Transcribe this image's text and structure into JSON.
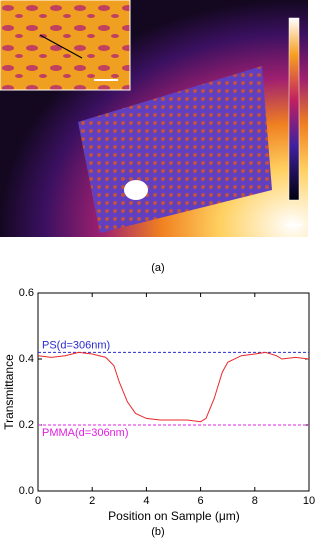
{
  "figure_labels": {
    "a": "(a)",
    "b": "(b)"
  },
  "chart_data": {
    "type": "line",
    "xlabel": "Position on Sample (μm)",
    "ylabel": "Transmittance",
    "xlim": [
      0,
      10
    ],
    "ylim": [
      0,
      0.6
    ],
    "xticks": [
      0,
      2,
      4,
      6,
      8,
      10
    ],
    "yticks": [
      {
        "value": 0,
        "label": "0.0"
      },
      {
        "value": 0.2,
        "label": "0.2"
      },
      {
        "value": 0.4,
        "label": "0.4"
      },
      {
        "value": 0.6,
        "label": "0.6"
      }
    ],
    "series": [
      {
        "color": "#e8282a",
        "x": [
          0,
          0.5,
          1,
          1.5,
          2,
          2.5,
          2.8,
          3,
          3.3,
          3.6,
          4,
          4.5,
          5,
          5.5,
          6,
          6.2,
          6.5,
          6.8,
          7,
          7.5,
          8,
          8.4,
          8.8,
          9,
          9.5,
          10
        ],
        "values": [
          0.41,
          0.405,
          0.41,
          0.42,
          0.415,
          0.405,
          0.38,
          0.33,
          0.27,
          0.235,
          0.22,
          0.215,
          0.215,
          0.215,
          0.21,
          0.22,
          0.28,
          0.36,
          0.39,
          0.41,
          0.415,
          0.42,
          0.41,
          0.4,
          0.405,
          0.4
        ]
      }
    ],
    "reference_lines": [
      {
        "label": "PS(d=306nm)",
        "value": 0.42,
        "color": "#2a2ad0"
      },
      {
        "label": "PMMA(d=306nm)",
        "value": 0.2,
        "color": "#e020e0"
      }
    ]
  }
}
